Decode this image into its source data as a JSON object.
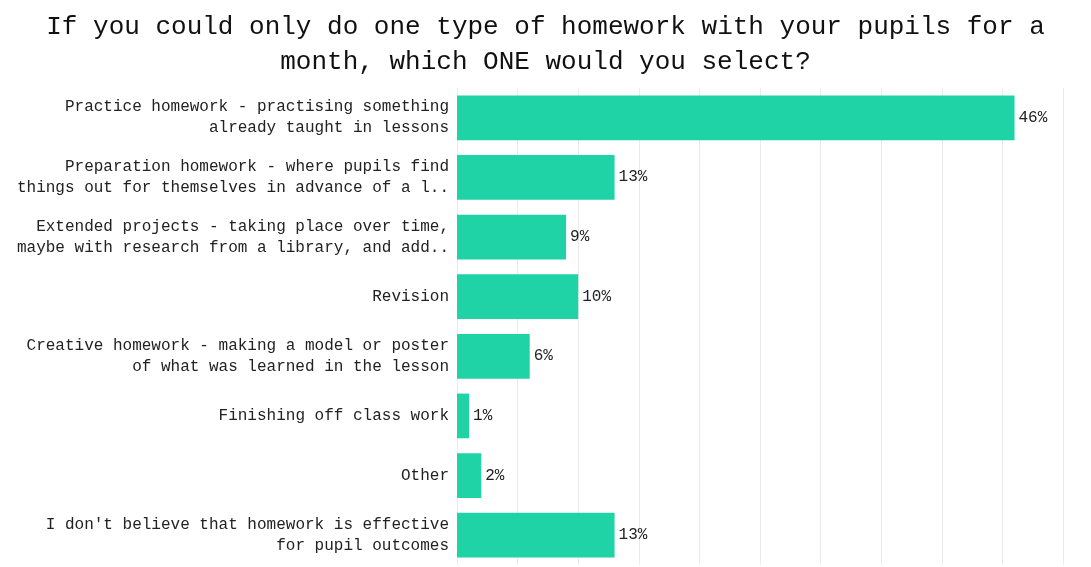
{
  "chart_data": {
    "type": "bar",
    "orientation": "horizontal",
    "title": "If you could only do one type of homework with your pupils for a\nmonth, which ONE would you select?",
    "categories": [
      "Practice homework - practising something\nalready taught in lessons",
      "Preparation homework - where pupils find\nthings out for themselves in advance of a l..",
      "Extended projects - taking place over time,\nmaybe with research from a library, and add..",
      "Revision",
      "Creative homework - making a model or poster\nof what was learned in the lesson",
      "Finishing off class work",
      "Other",
      "I don't believe that homework is effective\nfor pupil outcomes"
    ],
    "values": [
      46,
      13,
      9,
      10,
      6,
      1,
      2,
      13
    ],
    "value_labels": [
      "46%",
      "13%",
      "9%",
      "10%",
      "6%",
      "1%",
      "2%",
      "13%"
    ],
    "color": "#1fd3a6",
    "xlim": [
      0,
      50
    ],
    "xticks": [
      {
        "value": 0,
        "label": null
      },
      {
        "value": 5,
        "label": null
      },
      {
        "value": 10,
        "label": null
      },
      {
        "value": 15,
        "label": null
      },
      {
        "value": 20,
        "label": null
      },
      {
        "value": 25,
        "label": null
      },
      {
        "value": 30,
        "label": null
      },
      {
        "value": 35,
        "label": null
      },
      {
        "value": 40,
        "label": null
      },
      {
        "value": 45,
        "label": null
      },
      {
        "value": 50,
        "label": null
      }
    ],
    "grid": "x",
    "tick_labels": "y"
  }
}
